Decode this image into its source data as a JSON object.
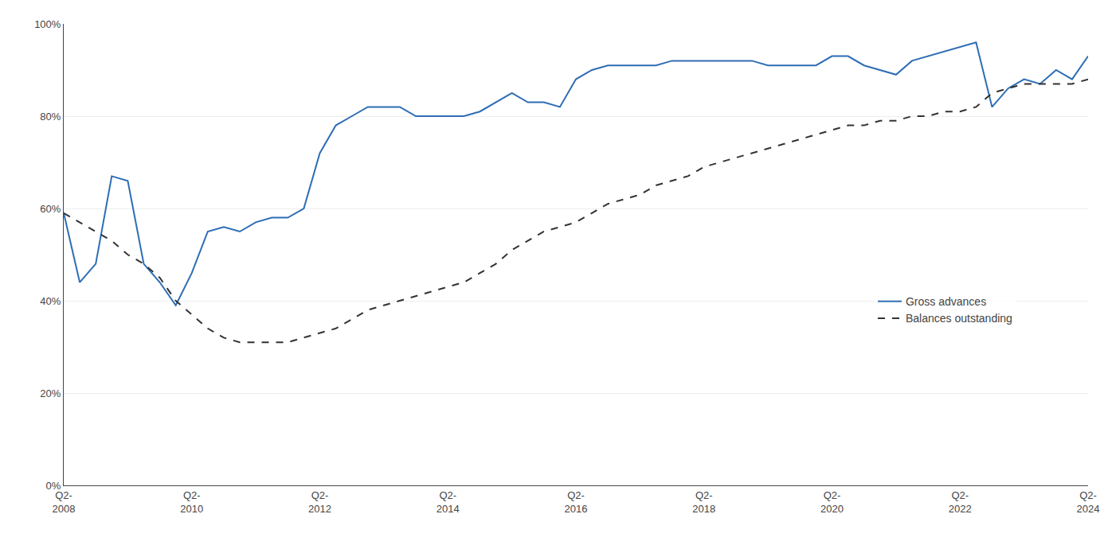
{
  "chart_data": {
    "type": "line",
    "categories": [
      "Q2-\n2008",
      null,
      null,
      null,
      null,
      null,
      null,
      null,
      "Q2-\n2010",
      null,
      null,
      null,
      null,
      null,
      null,
      null,
      "Q2-\n2012",
      null,
      null,
      null,
      null,
      null,
      null,
      null,
      "Q2-\n2014",
      null,
      null,
      null,
      null,
      null,
      null,
      null,
      "Q2-\n2016",
      null,
      null,
      null,
      null,
      null,
      null,
      null,
      "Q2-\n2018",
      null,
      null,
      null,
      null,
      null,
      null,
      null,
      "Q2-\n2020",
      null,
      null,
      null,
      null,
      null,
      null,
      null,
      "Q2-\n2022",
      null,
      null,
      null,
      null,
      null,
      null,
      null,
      "Q2-\n2024"
    ],
    "series": [
      {
        "name": "Gross advances",
        "color": "#2E6DB4",
        "line_style": "solid",
        "values": [
          0.59,
          0.44,
          0.48,
          0.67,
          0.66,
          0.48,
          0.44,
          0.39,
          0.46,
          0.55,
          0.56,
          0.55,
          0.57,
          0.58,
          0.58,
          0.6,
          0.72,
          0.78,
          0.8,
          0.82,
          0.82,
          0.82,
          0.8,
          0.8,
          0.8,
          0.8,
          0.81,
          0.83,
          0.85,
          0.83,
          0.83,
          0.82,
          0.88,
          0.9,
          0.91,
          0.91,
          0.91,
          0.91,
          0.92,
          0.92,
          0.92,
          0.92,
          0.92,
          0.92,
          0.91,
          0.91,
          0.91,
          0.91,
          0.93,
          0.93,
          0.91,
          0.9,
          0.89,
          0.92,
          0.93,
          0.94,
          0.95,
          0.96,
          0.82,
          0.86,
          0.88,
          0.87,
          0.9,
          0.88,
          0.93
        ]
      },
      {
        "name": "Balances outstanding",
        "color": "#333333",
        "line_style": "dashed",
        "values": [
          0.59,
          0.57,
          0.55,
          0.53,
          0.5,
          0.48,
          0.45,
          0.4,
          0.37,
          0.34,
          0.32,
          0.31,
          0.31,
          0.31,
          0.31,
          0.32,
          0.33,
          0.34,
          0.36,
          0.38,
          0.39,
          0.4,
          0.41,
          0.42,
          0.43,
          0.44,
          0.46,
          0.48,
          0.51,
          0.53,
          0.55,
          0.56,
          0.57,
          0.59,
          0.61,
          0.62,
          0.63,
          0.65,
          0.66,
          0.67,
          0.69,
          0.7,
          0.71,
          0.72,
          0.73,
          0.74,
          0.75,
          0.76,
          0.77,
          0.78,
          0.78,
          0.79,
          0.79,
          0.8,
          0.8,
          0.81,
          0.81,
          0.82,
          0.85,
          0.86,
          0.87,
          0.87,
          0.87,
          0.87,
          0.88
        ]
      }
    ],
    "ylim": [
      0,
      1.0
    ],
    "yticks": [
      {
        "value": 0.0,
        "label": "0%"
      },
      {
        "value": 0.2,
        "label": "20%"
      },
      {
        "value": 0.4,
        "label": "40%"
      },
      {
        "value": 0.6,
        "label": "60%"
      },
      {
        "value": 0.8,
        "label": "80%"
      },
      {
        "value": 1.0,
        "label": "100%"
      }
    ],
    "grid": true,
    "legend": "right"
  }
}
